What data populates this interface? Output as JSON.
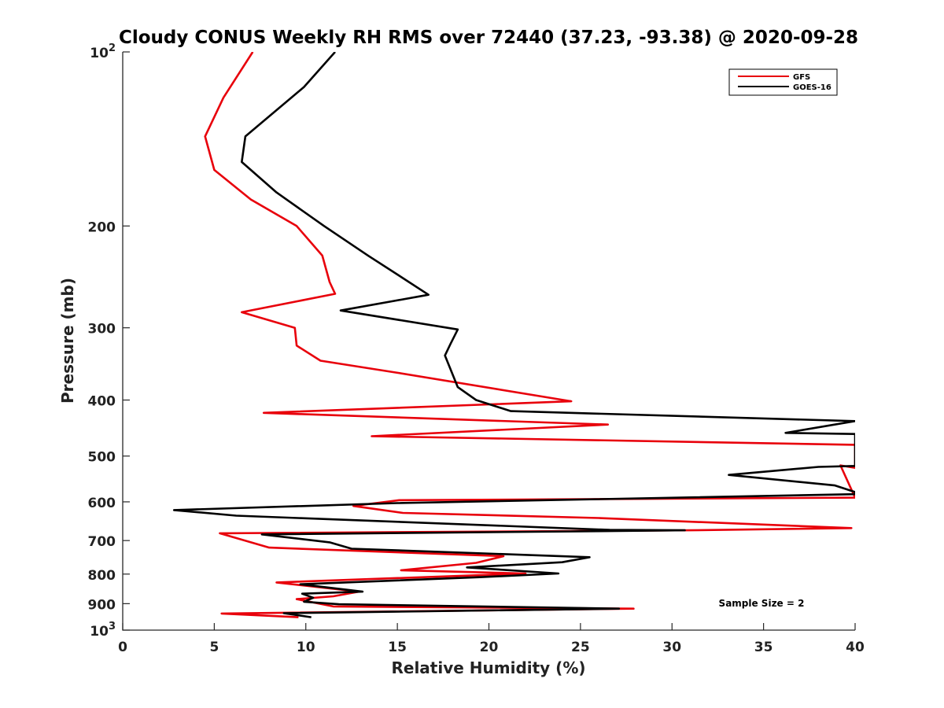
{
  "chart_data": {
    "type": "line",
    "title": "Cloudy CONUS Weekly RH RMS over 72440 (37.23, -93.38) @ 2020-09-28",
    "xlabel": "Relative Humidity (%)",
    "ylabel": "Pressure (mb)",
    "xlim": [
      0,
      40
    ],
    "ylim": [
      100,
      1000
    ],
    "yscale": "log",
    "y_reversed": true,
    "x_ticks": [
      "0",
      "5",
      "10",
      "15",
      "20",
      "25",
      "30",
      "35",
      "40"
    ],
    "y_ticks": [
      {
        "value": 100,
        "base": "10",
        "exp": "2"
      },
      {
        "value": 200,
        "label": "200"
      },
      {
        "value": 300,
        "label": "300"
      },
      {
        "value": 400,
        "label": "400"
      },
      {
        "value": 500,
        "label": "500"
      },
      {
        "value": 600,
        "label": "600"
      },
      {
        "value": 700,
        "label": "700"
      },
      {
        "value": 800,
        "label": "800"
      },
      {
        "value": 900,
        "label": "900"
      },
      {
        "value": 1000,
        "base": "10",
        "exp": "3"
      }
    ],
    "legend_position": "top-right",
    "annotation": "Sample Size = 2",
    "series": [
      {
        "name": "GFS",
        "color": "#e8000b",
        "points": [
          [
            7.1,
            100
          ],
          [
            5.5,
            120
          ],
          [
            4.5,
            140
          ],
          [
            5.0,
            160
          ],
          [
            7.0,
            180
          ],
          [
            9.5,
            200
          ],
          [
            10.9,
            225
          ],
          [
            11.3,
            250
          ],
          [
            11.6,
            262
          ],
          [
            6.5,
            282
          ],
          [
            9.4,
            300
          ],
          [
            9.5,
            322
          ],
          [
            10.8,
            342
          ],
          [
            14.8,
            358
          ],
          [
            24.5,
            402
          ],
          [
            7.7,
            421
          ],
          [
            26.5,
            441
          ],
          [
            13.6,
            462
          ],
          [
            40.0,
            478
          ],
          [
            40.0,
            524
          ],
          [
            39.2,
            519
          ],
          [
            40.0,
            590
          ],
          [
            28.0,
            593
          ],
          [
            15.1,
            596
          ],
          [
            12.6,
            610
          ],
          [
            15.3,
            627
          ],
          [
            26.0,
            640
          ],
          [
            39.8,
            666
          ],
          [
            31.0,
            672
          ],
          [
            5.3,
            680
          ],
          [
            8.0,
            720
          ],
          [
            20.8,
            745
          ],
          [
            19.3,
            765
          ],
          [
            15.2,
            788
          ],
          [
            22.0,
            798
          ],
          [
            8.4,
            827
          ],
          [
            12.9,
            858
          ],
          [
            11.5,
            874
          ],
          [
            9.5,
            884
          ],
          [
            11.5,
            910
          ],
          [
            27.9,
            918
          ],
          [
            5.4,
            936
          ],
          [
            9.6,
            950
          ]
        ]
      },
      {
        "name": "GOES-16",
        "color": "#000000",
        "points": [
          [
            11.6,
            100
          ],
          [
            9.9,
            115
          ],
          [
            6.7,
            140
          ],
          [
            6.5,
            155
          ],
          [
            8.4,
            175
          ],
          [
            11.0,
            200
          ],
          [
            13.4,
            225
          ],
          [
            15.2,
            245
          ],
          [
            16.7,
            263
          ],
          [
            11.9,
            280
          ],
          [
            18.3,
            302
          ],
          [
            17.9,
            320
          ],
          [
            17.6,
            335
          ],
          [
            18.3,
            380
          ],
          [
            19.3,
            400
          ],
          [
            21.2,
            418
          ],
          [
            40.0,
            435
          ],
          [
            36.2,
            456
          ],
          [
            40.0,
            458
          ],
          [
            40.0,
            468
          ],
          [
            40.0,
            520
          ],
          [
            38.0,
            522
          ],
          [
            33.1,
            539
          ],
          [
            38.9,
            562
          ],
          [
            40.0,
            577
          ],
          [
            40.0,
            582
          ],
          [
            15.0,
            603
          ],
          [
            2.8,
            620
          ],
          [
            6.2,
            634
          ],
          [
            26.6,
            671
          ],
          [
            30.7,
            672
          ],
          [
            7.6,
            683
          ],
          [
            11.3,
            705
          ],
          [
            12.5,
            723
          ],
          [
            25.5,
            748
          ],
          [
            24.0,
            763
          ],
          [
            18.8,
            779
          ],
          [
            23.8,
            798
          ],
          [
            19.5,
            810
          ],
          [
            9.7,
            833
          ],
          [
            13.1,
            858
          ],
          [
            9.8,
            865
          ],
          [
            10.4,
            879
          ],
          [
            9.9,
            893
          ],
          [
            11.8,
            902
          ],
          [
            27.1,
            918
          ],
          [
            8.8,
            935
          ],
          [
            10.3,
            950
          ]
        ]
      }
    ]
  }
}
